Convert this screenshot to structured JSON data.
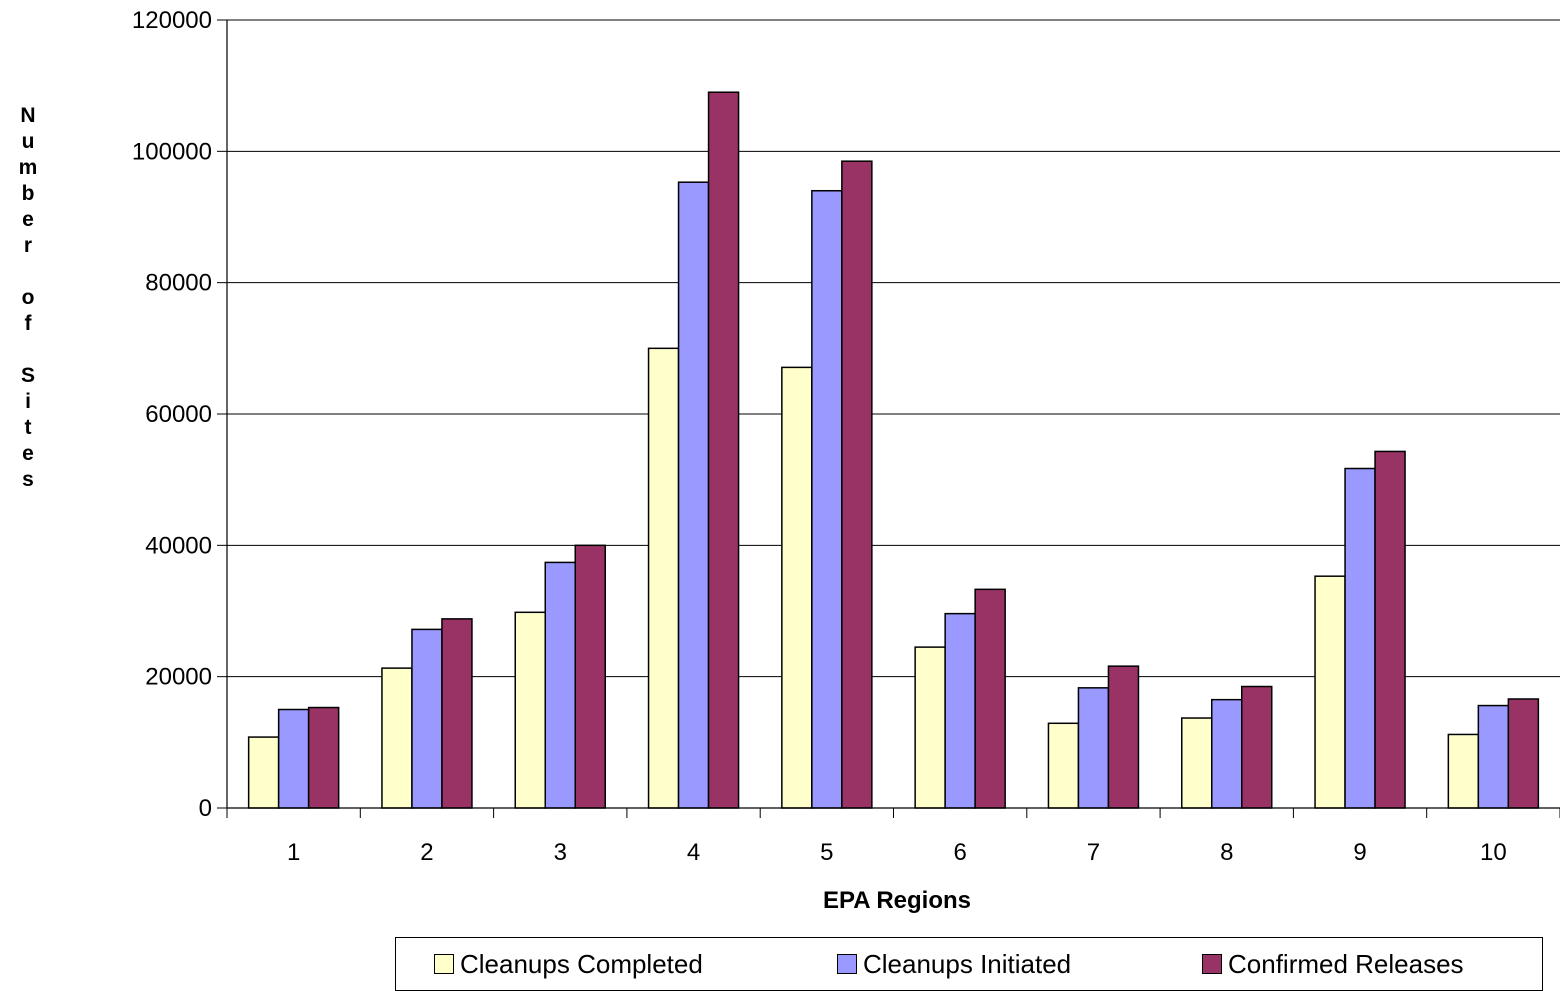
{
  "chart_data": {
    "type": "bar",
    "categories": [
      "1",
      "2",
      "3",
      "4",
      "5",
      "6",
      "7",
      "8",
      "9",
      "10"
    ],
    "series": [
      {
        "name": "Cleanups Completed",
        "color": "#FFFFCC",
        "values": [
          10800,
          21300,
          29800,
          70000,
          67100,
          24500,
          12900,
          13700,
          35300,
          11200
        ]
      },
      {
        "name": "Cleanups Initiated",
        "color": "#9999FF",
        "values": [
          15000,
          27200,
          37400,
          95300,
          94000,
          29600,
          18300,
          16500,
          51700,
          15600
        ]
      },
      {
        "name": "Confirmed Releases",
        "color": "#993366",
        "values": [
          15300,
          28800,
          40000,
          109000,
          98500,
          33300,
          21600,
          18500,
          54300,
          16600
        ]
      }
    ],
    "yticks": [
      "0",
      "20000",
      "40000",
      "60000",
      "80000",
      "100000",
      "120000"
    ],
    "ylim": [
      0,
      120000
    ],
    "ylabel": "Number of Sites",
    "xlabel": "EPA Regions",
    "grid": true,
    "legend_position": "bottom"
  }
}
